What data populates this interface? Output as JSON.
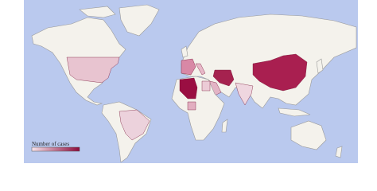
{
  "legend": {
    "title": "Number of cases",
    "colors": [
      "#f7e3ea",
      "#8c0b3c"
    ]
  }
}
